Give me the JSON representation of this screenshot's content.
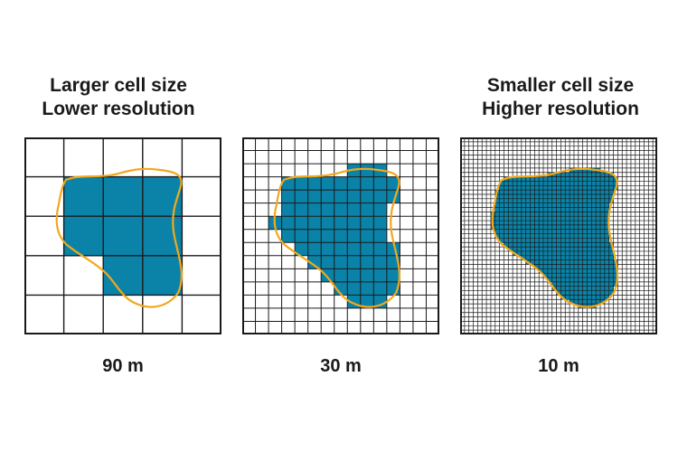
{
  "headings": {
    "left": {
      "line1": "Larger cell size",
      "line2": "Lower resolution"
    },
    "right": {
      "line1": "Smaller cell size",
      "line2": "Higher resolution"
    }
  },
  "panels": [
    {
      "cells": 5,
      "resolution_label": "90 m"
    },
    {
      "cells": 15,
      "resolution_label": "30 m"
    },
    {
      "cells": 45,
      "resolution_label": "10 m"
    }
  ],
  "colors": {
    "fill": "#0b83a8",
    "outline": "#f2a81d",
    "grid": "#1a1a1a",
    "text": "#1a1a1a"
  }
}
